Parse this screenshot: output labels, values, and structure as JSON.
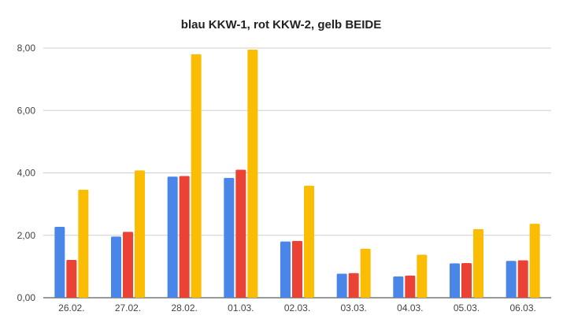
{
  "chart_data": {
    "type": "bar",
    "title": "blau KKW-1, rot KKW-2, gelb BEIDE",
    "xlabel": "",
    "ylabel": "",
    "categories": [
      "26.02.",
      "27.02.",
      "28.02.",
      "01.03.",
      "02.03.",
      "03.03.",
      "04.03.",
      "05.03.",
      "06.03."
    ],
    "series": [
      {
        "color": "#4a86e8",
        "values": [
          2.27,
          1.96,
          3.88,
          3.84,
          1.8,
          0.77,
          0.68,
          1.1,
          1.18
        ]
      },
      {
        "color": "#ea4335",
        "values": [
          1.21,
          2.11,
          3.9,
          4.1,
          1.82,
          0.79,
          0.71,
          1.11,
          1.2
        ]
      },
      {
        "color": "#fbbc04",
        "values": [
          3.46,
          4.08,
          7.8,
          7.95,
          3.59,
          1.57,
          1.38,
          2.2,
          2.37
        ]
      }
    ],
    "yticks": [
      "0,00",
      "2,00",
      "4,00",
      "6,00",
      "8,00"
    ],
    "ylim": [
      0,
      8
    ],
    "grid": true,
    "legend": "none"
  }
}
